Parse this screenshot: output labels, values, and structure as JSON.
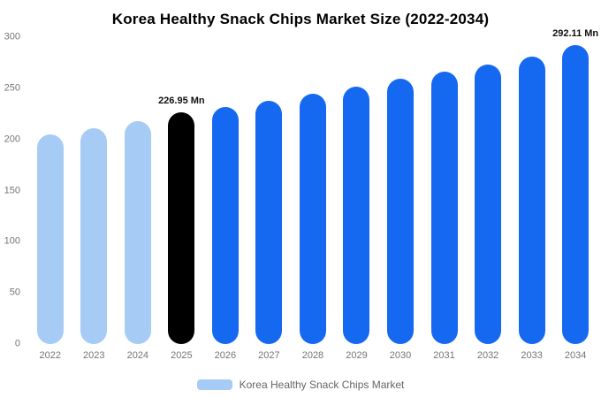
{
  "chart_data": {
    "type": "bar",
    "title": "Korea Healthy Snack Chips Market Size (2022-2034)",
    "categories": [
      "2022",
      "2023",
      "2024",
      "2025",
      "2026",
      "2027",
      "2028",
      "2029",
      "2030",
      "2031",
      "2032",
      "2033",
      "2034"
    ],
    "values": [
      205,
      211,
      218,
      226.95,
      232,
      238,
      245,
      252,
      259,
      266,
      273,
      281,
      292.11
    ],
    "bar_colors": [
      "#a6cbf5",
      "#a6cbf5",
      "#a6cbf5",
      "#000000",
      "#1569f0",
      "#1569f0",
      "#1569f0",
      "#1569f0",
      "#1569f0",
      "#1569f0",
      "#1569f0",
      "#1569f0",
      "#1569f0"
    ],
    "annotations": [
      {
        "category": "2025",
        "text": "226.95 Mn"
      },
      {
        "category": "2034",
        "text": "292.11 Mn"
      }
    ],
    "xlabel": "",
    "ylabel": "",
    "ylim": [
      0,
      300
    ],
    "yticks": [
      0,
      50,
      100,
      150,
      200,
      250,
      300
    ],
    "grid": false,
    "legend": "Korea Healthy Snack Chips Market",
    "legend_position": "bottom",
    "colors": {
      "light_blue": "#a6cbf5",
      "blue": "#1569f0",
      "highlight": "#000000",
      "axis_text": "#757575",
      "legend_text": "#666666",
      "background": "#ffffff"
    }
  }
}
